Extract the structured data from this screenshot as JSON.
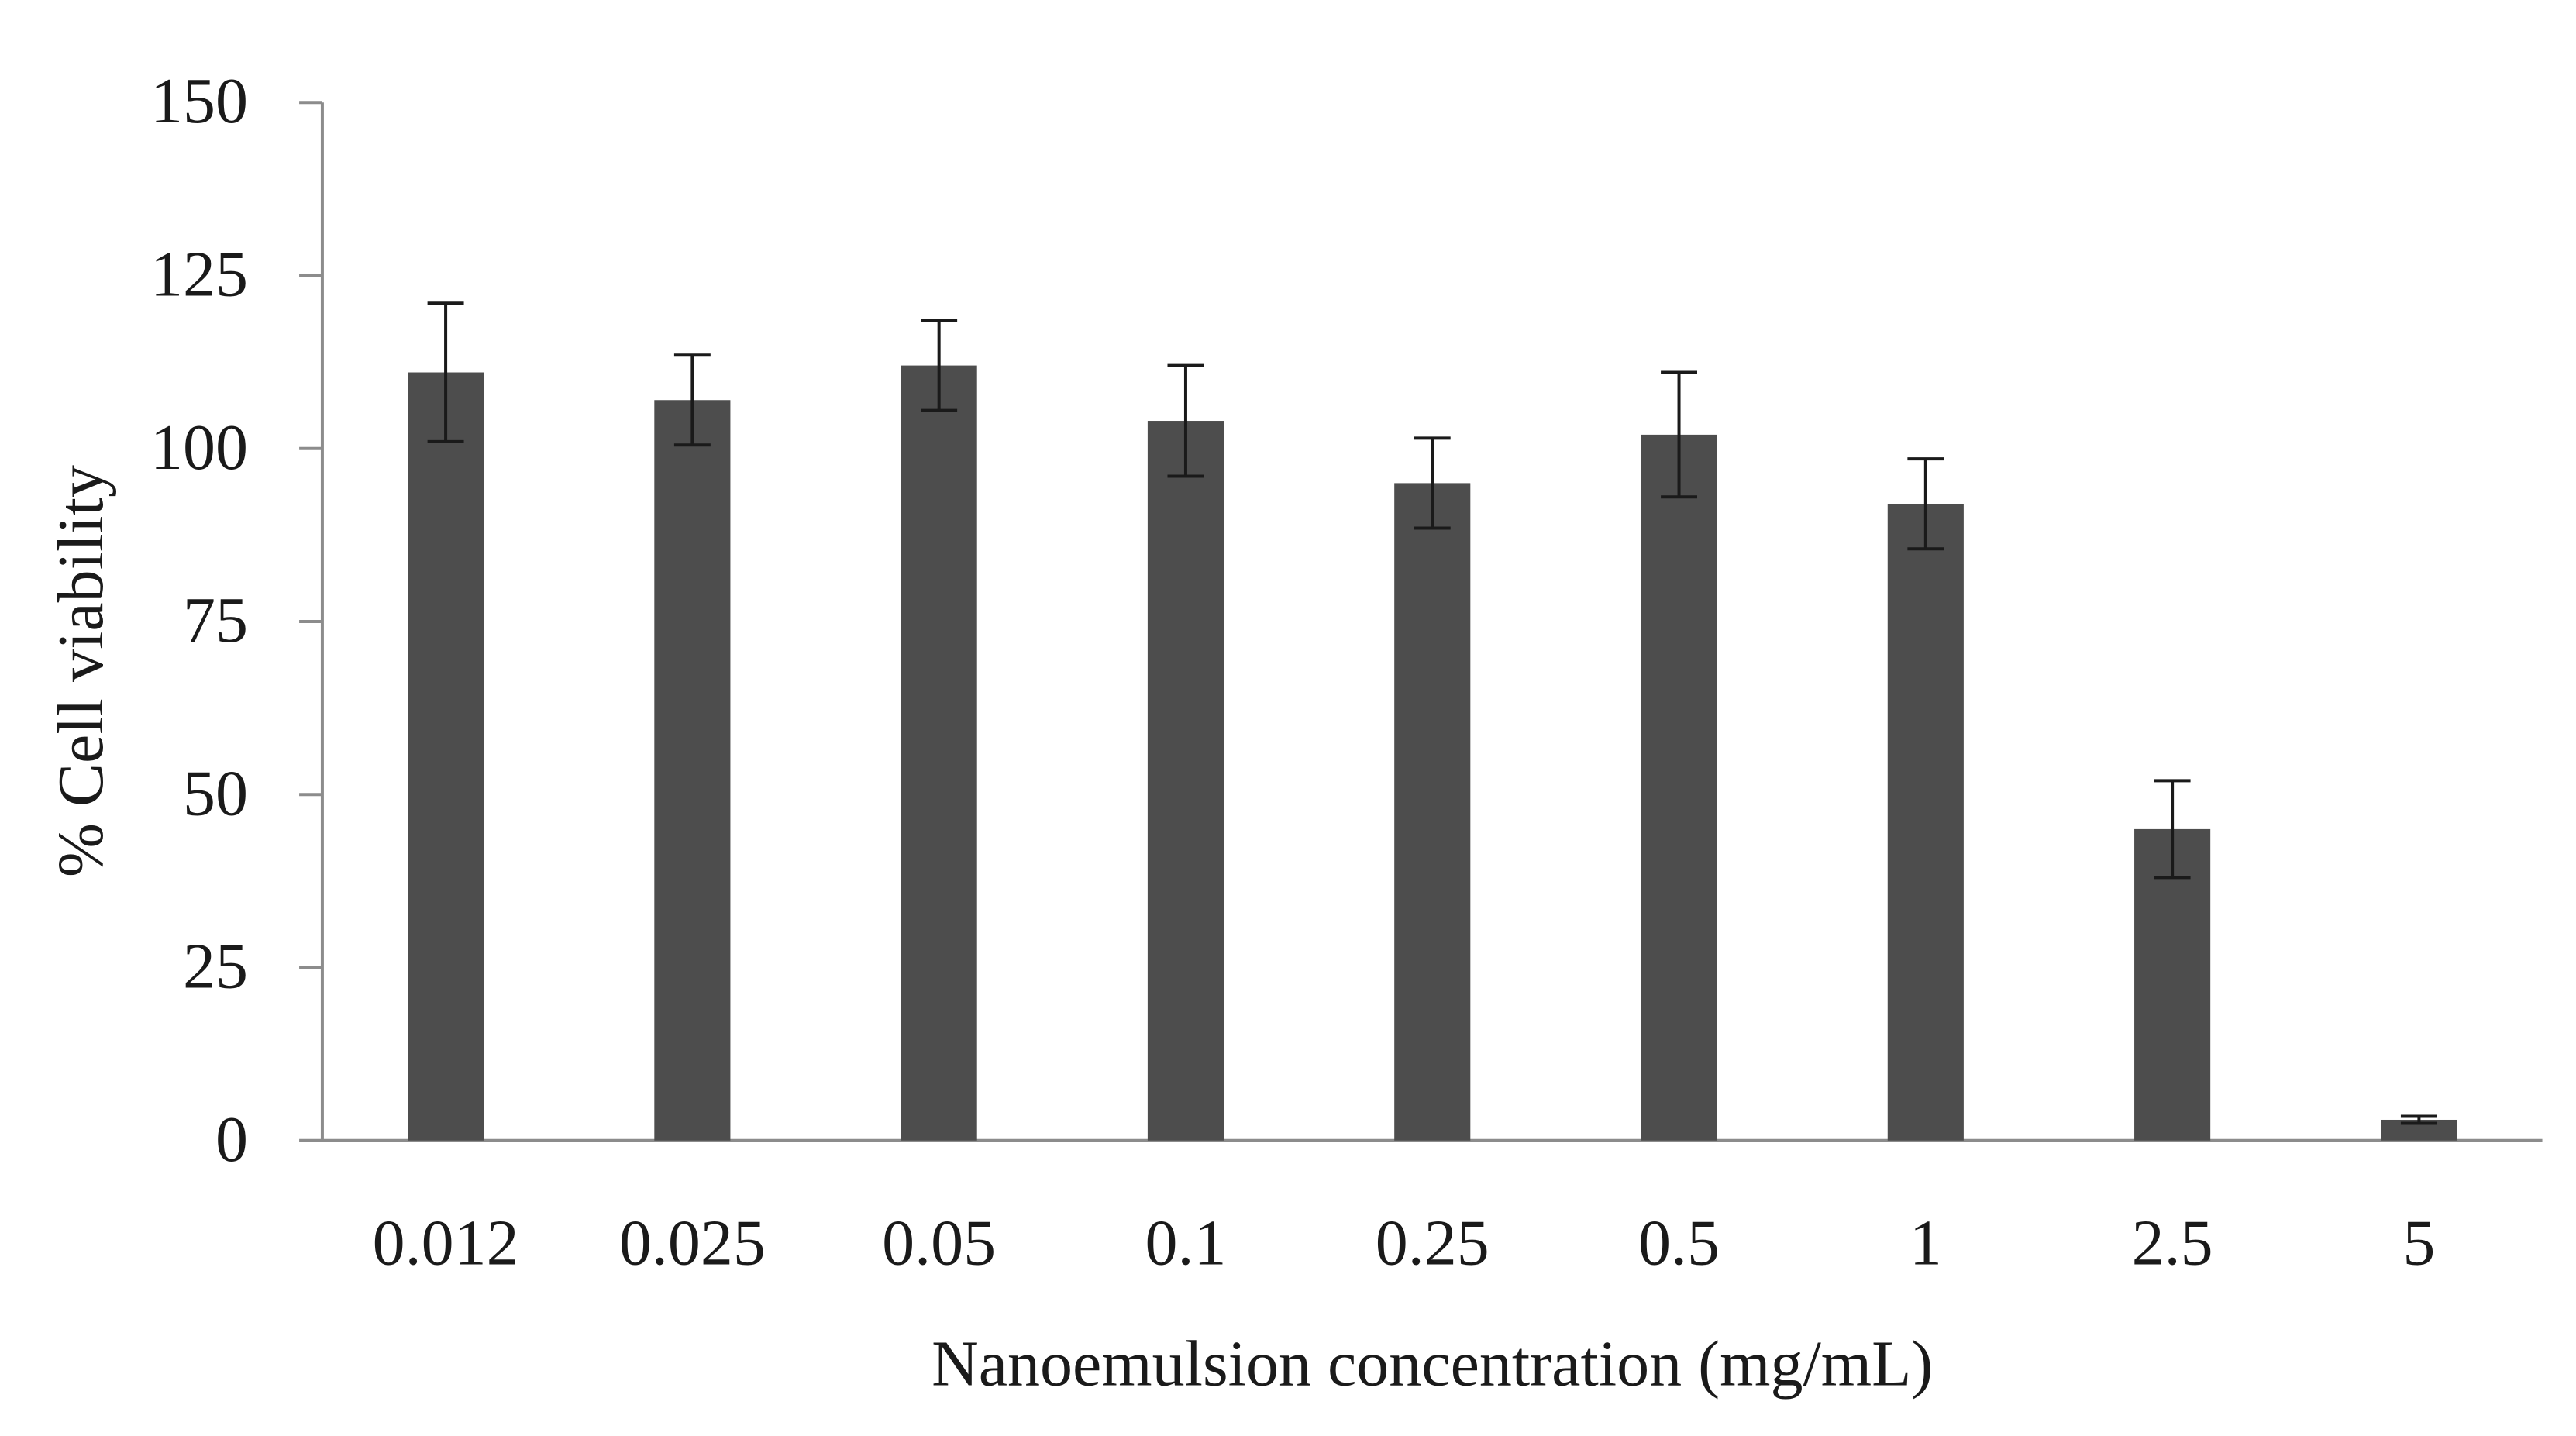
{
  "chart_data": {
    "type": "bar",
    "title": "",
    "xlabel": "Nanoemulsion concentration (mg/mL)",
    "ylabel": "% Cell viability",
    "categories": [
      "0.012",
      "0.025",
      "0.05",
      "0.1",
      "0.25",
      "0.5",
      "1",
      "2.5",
      "5"
    ],
    "values": [
      111,
      107,
      112,
      104,
      95,
      102,
      92,
      45,
      3
    ],
    "errors": [
      10,
      6.5,
      6.5,
      8,
      6.5,
      9,
      6.5,
      7,
      0.5
    ],
    "ylim": [
      0,
      150
    ],
    "yticks": [
      0,
      25,
      50,
      75,
      100,
      125,
      150
    ],
    "grid": false,
    "colors": {
      "bar": "#4d4d4d",
      "axis": "#8c8c8c",
      "error": "#1a1a1a"
    }
  }
}
